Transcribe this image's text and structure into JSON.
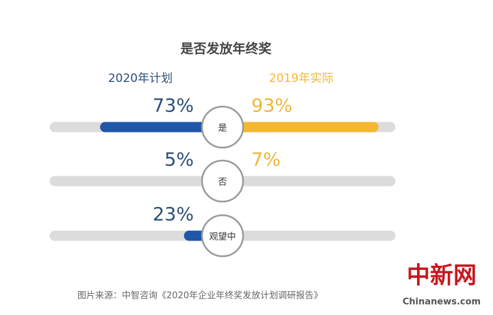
{
  "chart_data": {
    "type": "butterfly",
    "title": "是否发放年终奖",
    "categories": [
      "是",
      "否",
      "观望中"
    ],
    "series": [
      {
        "name": "2020年计划",
        "color": "#1f56a8",
        "label_color": "#2d4f78",
        "values": [
          73,
          5,
          23
        ],
        "value_labels": [
          "73%",
          "5%",
          "23%"
        ]
      },
      {
        "name": "2019年实际",
        "color": "#f5b730",
        "label_color": "#f0b53a",
        "values": [
          93,
          7,
          null
        ],
        "value_labels": [
          "93%",
          "7%",
          null
        ]
      }
    ],
    "xlim": [
      0,
      100
    ],
    "source": "图片来源：中智咨询《2020年企业年终奖发放计划调研报告》",
    "watermark": "中新网",
    "watermark_site": "Chinanews.com"
  }
}
